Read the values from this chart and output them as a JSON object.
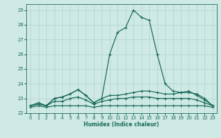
{
  "xlabel": "Humidex (Indice chaleur)",
  "background_color": "#cfe9e5",
  "grid_color": "#b0d4cc",
  "line_color": "#1a6b5a",
  "x_values": [
    0,
    1,
    2,
    3,
    4,
    5,
    6,
    7,
    8,
    9,
    10,
    11,
    12,
    13,
    14,
    15,
    16,
    17,
    18,
    19,
    20,
    21,
    22,
    23
  ],
  "line_main": [
    22.5,
    22.7,
    22.5,
    23.0,
    23.1,
    23.3,
    23.6,
    23.2,
    22.7,
    23.0,
    26.0,
    27.5,
    27.8,
    29.0,
    28.5,
    28.3,
    26.0,
    24.0,
    23.5,
    23.4,
    23.5,
    23.2,
    22.9,
    22.5
  ],
  "line_upper": [
    22.5,
    22.7,
    22.5,
    23.0,
    23.1,
    23.3,
    23.6,
    23.2,
    22.7,
    23.0,
    23.2,
    23.2,
    23.3,
    23.4,
    23.5,
    23.5,
    23.4,
    23.3,
    23.3,
    23.4,
    23.4,
    23.3,
    23.0,
    22.5
  ],
  "line_lower": [
    22.4,
    22.5,
    22.4,
    22.5,
    22.5,
    22.5,
    22.5,
    22.5,
    22.4,
    22.5,
    22.5,
    22.5,
    22.5,
    22.5,
    22.5,
    22.5,
    22.5,
    22.5,
    22.5,
    22.5,
    22.5,
    22.5,
    22.5,
    22.4
  ],
  "line_mid": [
    22.5,
    22.6,
    22.5,
    22.8,
    22.8,
    23.0,
    23.1,
    22.9,
    22.6,
    22.8,
    22.9,
    23.0,
    23.0,
    23.1,
    23.1,
    23.1,
    23.0,
    23.0,
    23.0,
    23.0,
    23.0,
    22.9,
    22.7,
    22.5
  ],
  "ylim": [
    22.0,
    29.4
  ],
  "xlim": [
    -0.5,
    23.5
  ],
  "yticks": [
    22,
    23,
    24,
    25,
    26,
    27,
    28,
    29
  ],
  "xticks": [
    0,
    1,
    2,
    3,
    4,
    5,
    6,
    7,
    8,
    9,
    10,
    11,
    12,
    13,
    14,
    15,
    16,
    17,
    18,
    19,
    20,
    21,
    22,
    23
  ]
}
